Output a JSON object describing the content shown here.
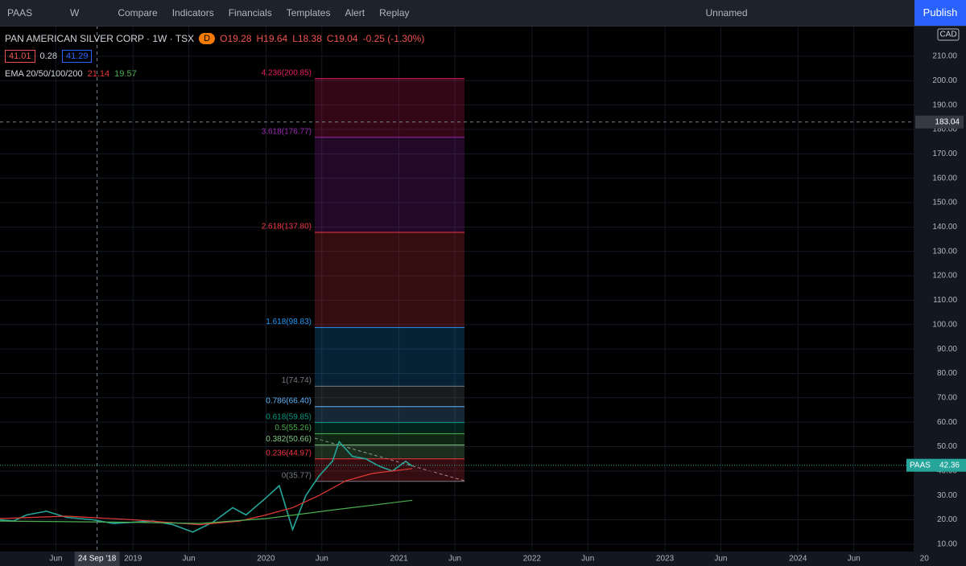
{
  "toolbar": {
    "symbol": "PAAS",
    "interval": "W",
    "compare": "Compare",
    "indicators": "Indicators",
    "financials": "Financials",
    "templates": "Templates",
    "alert": "Alert",
    "replay": "Replay",
    "layout_name": "Unnamed",
    "publish": "Publish"
  },
  "legend": {
    "title": "PAN AMERICAN SILVER CORP · 1W · TSX",
    "badge": "D",
    "open": "O19.28",
    "high": "H19.64",
    "low": "L18.38",
    "close": "C19.04",
    "change": "-0.25 (-1.30%)",
    "sell": "41.01",
    "spread": "0.28",
    "buy": "41.29",
    "ema_title": "EMA 20/50/100/200",
    "ema_a": "21.14",
    "ema_b": "19.57"
  },
  "chart_data": {
    "type": "line",
    "currency": "CAD",
    "xlim": [
      2018.0,
      2024.87
    ],
    "ylim": [
      7,
      222.5
    ],
    "xticks": [
      {
        "value": 2018.42,
        "label": "Jun"
      },
      2019,
      {
        "value": 2019.42,
        "label": "Jun"
      },
      2020,
      {
        "value": 2020.42,
        "label": "Jun"
      },
      2021,
      {
        "value": 2021.42,
        "label": "Jun"
      },
      2022,
      {
        "value": 2022.42,
        "label": "Jun"
      },
      2023,
      {
        "value": 2023.42,
        "label": "Jun"
      },
      2024,
      {
        "value": 2024.42,
        "label": "Jun"
      },
      {
        "value": 2024.95,
        "label": "20"
      }
    ],
    "yticks": [
      {
        "value": 10,
        "label": "10.00"
      },
      {
        "value": 20,
        "label": "20.00"
      },
      {
        "value": 30,
        "label": "30.00"
      },
      {
        "value": 40,
        "label": "40.00"
      },
      {
        "value": 50,
        "label": "50.00"
      },
      {
        "value": 60,
        "label": "60.00"
      },
      {
        "value": 70,
        "label": "70.00"
      },
      {
        "value": 80,
        "label": "80.00"
      },
      {
        "value": 90,
        "label": "90.00"
      },
      {
        "value": 100,
        "label": "100.00"
      },
      {
        "value": 110,
        "label": "110.00"
      },
      {
        "value": 120,
        "label": "120.00"
      },
      {
        "value": 130,
        "label": "130.00"
      },
      {
        "value": 140,
        "label": "140.00"
      },
      {
        "value": 150,
        "label": "150.00"
      },
      {
        "value": 160,
        "label": "160.00"
      },
      {
        "value": 170,
        "label": "170.00"
      },
      {
        "value": 180,
        "label": "180.00"
      },
      {
        "value": 190,
        "label": "190.00"
      },
      {
        "value": 200,
        "label": "200.00"
      },
      {
        "value": 210,
        "label": "210.00"
      }
    ],
    "series": [
      {
        "color": "#26a69a",
        "x": [
          2018.0,
          2018.1,
          2018.2,
          2018.35,
          2018.5,
          2018.7,
          2018.85,
          2019.0,
          2019.15,
          2019.3,
          2019.45,
          2019.6,
          2019.75,
          2019.85,
          2020.0,
          2020.1,
          2020.2,
          2020.3,
          2020.4,
          2020.5,
          2020.55,
          2020.65,
          2020.75,
          2020.85,
          2020.95,
          2021.05,
          2021.1
        ],
        "values": [
          20,
          19.5,
          22,
          23.5,
          21,
          20,
          18.5,
          19,
          19.5,
          18,
          15,
          19,
          25,
          22,
          29,
          34,
          16,
          30,
          38,
          44,
          52,
          46,
          45,
          42,
          40,
          44,
          42
        ]
      },
      {
        "color": "#e53935",
        "x": [
          2018.0,
          2018.5,
          2019.0,
          2019.5,
          2019.8,
          2020.0,
          2020.2,
          2020.4,
          2020.6,
          2020.8,
          2021.1
        ],
        "values": [
          20.5,
          21.5,
          20,
          18,
          19.5,
          22,
          25,
          30,
          36,
          39,
          41
        ]
      },
      {
        "color": "#4caf50",
        "x": [
          2018.0,
          2019.0,
          2019.5,
          2020.0,
          2020.5,
          2021.1
        ],
        "values": [
          19.5,
          19,
          18.5,
          20.5,
          24,
          28
        ]
      }
    ],
    "fib_levels": [
      {
        "label": "0(35.77)",
        "price": 35.77,
        "color": "#787b86"
      },
      {
        "label": "0.236(44.97)",
        "price": 44.97,
        "color": "#f23645"
      },
      {
        "label": "0.382(50.66)",
        "price": 50.66,
        "color": "#81c784"
      },
      {
        "label": "0.5(55.26)",
        "price": 55.26,
        "color": "#4caf50"
      },
      {
        "label": "0.618(59.85)",
        "price": 59.85,
        "color": "#089981"
      },
      {
        "label": "0.786(66.40)",
        "price": 66.4,
        "color": "#64b5f6"
      },
      {
        "label": "1(74.74)",
        "price": 74.74,
        "color": "#787b86"
      },
      {
        "label": "1.618(98.83)",
        "price": 98.83,
        "color": "#2196f3"
      },
      {
        "label": "2.618(137.80)",
        "price": 137.8,
        "color": "#f23645"
      },
      {
        "label": "3.618(176.77)",
        "price": 176.77,
        "color": "#9c27b0"
      },
      {
        "label": "4.236(200.85)",
        "price": 200.85,
        "color": "#e91e63"
      }
    ],
    "crosshair": {
      "date_label": "24 Sep '18",
      "date": 2018.73,
      "price_label": "183.04",
      "price": 183.04
    },
    "last_price": {
      "symbol": "PAAS",
      "label": "42.36",
      "price": 42.36
    }
  }
}
